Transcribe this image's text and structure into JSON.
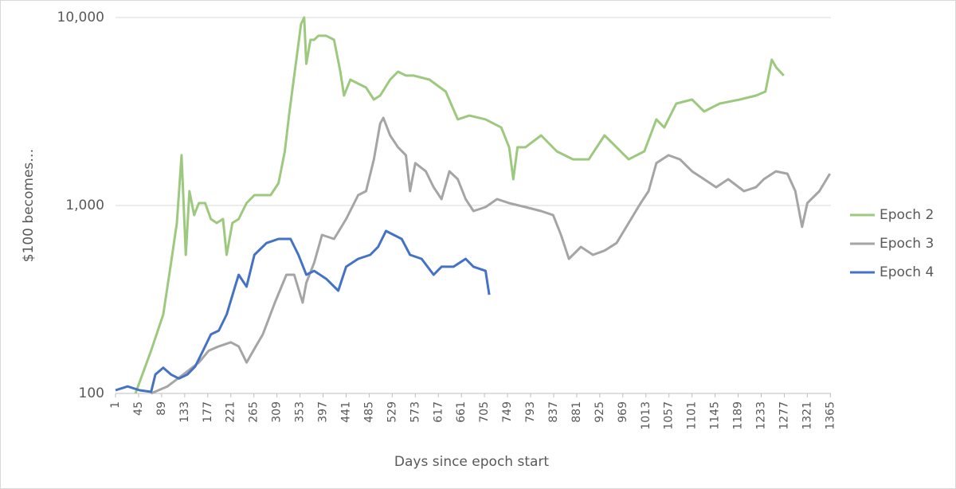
{
  "chart_data": {
    "type": "line",
    "x_label": "Days since epoch start",
    "y_label": "$100 becomes…",
    "log_y": true,
    "grid": true,
    "legend": "right",
    "xlim": [
      1,
      1366
    ],
    "xticks": [
      1,
      45,
      89,
      133,
      177,
      221,
      265,
      309,
      353,
      397,
      441,
      485,
      529,
      573,
      617,
      661,
      705,
      749,
      793,
      837,
      881,
      925,
      969,
      1013,
      1057,
      1101,
      1145,
      1189,
      1233,
      1277,
      1321,
      1365
    ],
    "ylim": [
      100,
      10000
    ],
    "yticks": [
      100,
      {
        "value": 1000,
        "label": "1,000"
      },
      {
        "value": 10000,
        "label": "10,000"
      }
    ],
    "series": [
      {
        "name": "Epoch 2",
        "color": "#9dc97f",
        "x": [
          39,
          69,
          92,
          107,
          118,
          127,
          135,
          142,
          151,
          160,
          172,
          183,
          194,
          206,
          213,
          224,
          236,
          251,
          266,
          282,
          297,
          312,
          324,
          333,
          345,
          355,
          361,
          365,
          373,
          380,
          388,
          403,
          418,
          430,
          437,
          449,
          464,
          479,
          494,
          506,
          525,
          540,
          555,
          570,
          600,
          631,
          654,
          676,
          707,
          737,
          752,
          760,
          768,
          783,
          813,
          843,
          874,
          904,
          934,
          957,
          980,
          1010,
          1033,
          1048,
          1071,
          1101,
          1124,
          1154,
          1192,
          1223,
          1241,
          1253,
          1262,
          1276
        ],
        "values": [
          100,
          169,
          263,
          495,
          807,
          1850,
          546,
          1192,
          889,
          1030,
          1030,
          847,
          807,
          847,
          546,
          807,
          847,
          1030,
          1135,
          1135,
          1135,
          1314,
          1942,
          3162,
          5675,
          9250,
          10000,
          5675,
          7610,
          7610,
          8000,
          8000,
          7610,
          5150,
          3845,
          4670,
          4450,
          4240,
          3660,
          3845,
          4670,
          5150,
          4910,
          4910,
          4670,
          4035,
          2870,
          3010,
          2870,
          2600,
          2040,
          1380,
          2040,
          2040,
          2360,
          1942,
          1760,
          1760,
          2360,
          2040,
          1760,
          1942,
          2870,
          2600,
          3485,
          3660,
          3162,
          3485,
          3660,
          3845,
          4035,
          5960,
          5410,
          4910
        ]
      },
      {
        "name": "Epoch 3",
        "color": "#a5a5a5",
        "x": [
          69,
          100,
          130,
          160,
          179,
          198,
          221,
          236,
          251,
          264,
          282,
          305,
          327,
          342,
          358,
          365,
          380,
          395,
          418,
          441,
          464,
          479,
          494,
          506,
          512,
          525,
          540,
          555,
          563,
          573,
          593,
          608,
          623,
          638,
          654,
          669,
          684,
          707,
          729,
          752,
          783,
          813,
          836,
          851,
          866,
          889,
          912,
          934,
          957,
          980,
          1003,
          1018,
          1033,
          1056,
          1078,
          1101,
          1124,
          1147,
          1170,
          1200,
          1223,
          1238,
          1261,
          1283,
          1298,
          1311,
          1321,
          1344,
          1364
        ],
        "values": [
          100,
          109,
          126,
          146,
          169,
          178,
          187,
          178,
          146,
          169,
          206,
          304,
          428,
          428,
          304,
          388,
          495,
          697,
          664,
          847,
          1135,
          1192,
          1760,
          2730,
          2925,
          2360,
          2040,
          1850,
          1192,
          1680,
          1520,
          1250,
          1081,
          1520,
          1380,
          1081,
          934,
          981,
          1081,
          1030,
          981,
          934,
          889,
          697,
          520,
          602,
          546,
          575,
          631,
          807,
          1030,
          1192,
          1680,
          1850,
          1760,
          1520,
          1380,
          1250,
          1380,
          1192,
          1250,
          1380,
          1520,
          1476,
          1192,
          769,
          1030,
          1192,
          1476
        ]
      },
      {
        "name": "Epoch 4",
        "color": "#4472c4",
        "x": [
          1,
          24,
          47,
          69,
          77,
          92,
          107,
          122,
          138,
          153,
          168,
          183,
          198,
          213,
          229,
          236,
          251,
          266,
          289,
          312,
          335,
          350,
          365,
          380,
          403,
          426,
          441,
          464,
          487,
          502,
          517,
          532,
          547,
          563,
          585,
          608,
          623,
          646,
          669,
          684,
          707,
          714
        ],
        "values": [
          104,
          109,
          104,
          102,
          126,
          137,
          126,
          120,
          126,
          139,
          169,
          206,
          216,
          263,
          370,
          428,
          370,
          546,
          631,
          664,
          664,
          546,
          428,
          449,
          407,
          352,
          472,
          520,
          546,
          602,
          732,
          697,
          664,
          546,
          520,
          428,
          472,
          472,
          520,
          472,
          449,
          335
        ]
      }
    ]
  }
}
